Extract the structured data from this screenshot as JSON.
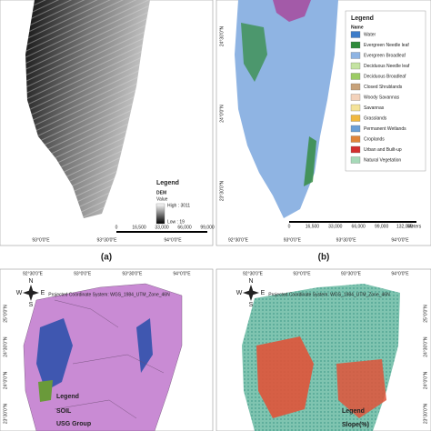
{
  "panel_a": {
    "legend_title": "Legend",
    "layer": "DEM",
    "field": "Value",
    "high": "High : 3011",
    "low": "Low : 19",
    "scale": [
      "0",
      "16,500",
      "33,000",
      "66,000",
      "99,000"
    ],
    "lon_labels": [
      "93°0'0\"E",
      "93°30'0\"E",
      "94°0'0\"E"
    ],
    "caption": "(a)"
  },
  "panel_b": {
    "legend_title": "Legend",
    "field": "Name",
    "items": [
      {
        "label": "Water",
        "color": "#3d7cc9"
      },
      {
        "label": "Evergreen Needle leaf",
        "color": "#2f8a3a"
      },
      {
        "label": "Evergreen Broadleaf",
        "color": "#8fb4e3"
      },
      {
        "label": "Deciduous Needle leaf",
        "color": "#c4e3a2"
      },
      {
        "label": "Deciduous Broadleaf",
        "color": "#9ccc65"
      },
      {
        "label": "Closed Shrublands",
        "color": "#c8a27a"
      },
      {
        "label": "Woody Savannas",
        "color": "#f3d2bb"
      },
      {
        "label": "Savannas",
        "color": "#f4e39a"
      },
      {
        "label": "Grasslands",
        "color": "#f0b840"
      },
      {
        "label": "Permanent Wetlands",
        "color": "#6a9fd6"
      },
      {
        "label": "Croplands",
        "color": "#e0853a"
      },
      {
        "label": "Urban and Built-up",
        "color": "#d32f2f"
      },
      {
        "label": "Natural Vegetation",
        "color": "#a6d9b8"
      }
    ],
    "scale": [
      "0",
      "16,500",
      "33,000",
      "66,000",
      "99,000",
      "132,000"
    ],
    "scale_unit": "Meters",
    "lon_labels": [
      "92°30'0\"E",
      "93°0'0\"E",
      "93°30'0\"E",
      "94°0'0\"E"
    ],
    "lat_labels": [
      "24°30'0\"N",
      "24°0'0\"N",
      "23°30'0\"N"
    ],
    "caption": "(b)"
  },
  "panel_c": {
    "lon_labels": [
      "92°30'0\"E",
      "93°0'0\"E",
      "93°30'0\"E",
      "94°0'0\"E"
    ],
    "lat_labels": [
      "25°0'0\"N",
      "24°30'0\"N",
      "24°0'0\"N",
      "23°30'0\"N"
    ],
    "projection": "Projected Coordinate System: WGS_1984_UTM_Zone_46N",
    "compass": [
      "N",
      "E",
      "S",
      "W"
    ],
    "legend_title": "Legend",
    "layer": "SOIL",
    "field": "USG Group"
  },
  "panel_d": {
    "lon_labels": [
      "92°30'0\"E",
      "93°0'0\"E",
      "93°30'0\"E",
      "94°0'0\"E"
    ],
    "lat_labels": [
      "25°0'0\"N",
      "24°30'0\"N",
      "24°0'0\"N",
      "23°30'0\"N"
    ],
    "projection": "Projected Coordinate System: WGS_1984_UTM_Zone_46N",
    "compass": [
      "N",
      "E",
      "S",
      "W"
    ],
    "legend_title": "Legend",
    "layer": "Slope(%)"
  }
}
